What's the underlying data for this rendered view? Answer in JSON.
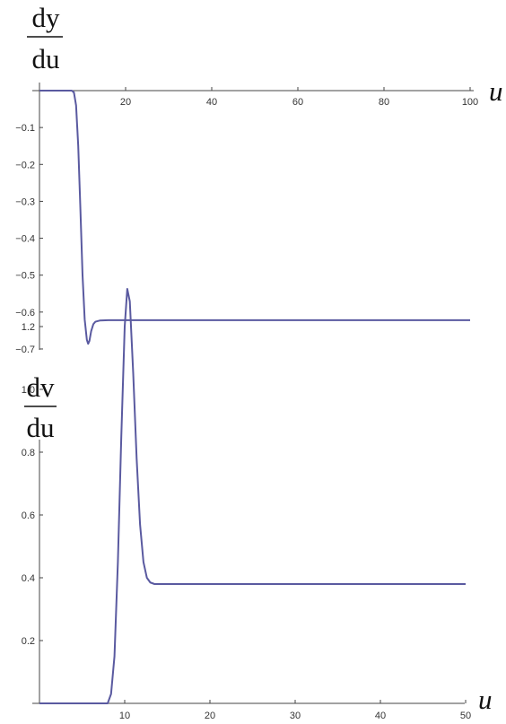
{
  "charts": [
    {
      "ylabel_numerator": "dy",
      "ylabel_denominator": "du",
      "xlabel": "u"
    },
    {
      "ylabel_numerator": "dv",
      "ylabel_denominator": "du",
      "xlabel": "u"
    }
  ],
  "chart_data": [
    {
      "type": "line",
      "title": "",
      "xlabel": "u",
      "ylabel": "dy/du",
      "xlim": [
        0,
        100
      ],
      "ylim": [
        -0.7,
        0
      ],
      "x_ticks": [
        20,
        40,
        60,
        80,
        100
      ],
      "x_tick_labels": [
        "20",
        "40",
        "60",
        "80",
        "100"
      ],
      "y_ticks": [
        -0.1,
        -0.2,
        -0.3,
        -0.4,
        -0.5,
        -0.6,
        -0.7
      ],
      "y_tick_labels": [
        "-0.1",
        "-0.2",
        "-0.3",
        "-0.4",
        "-0.5",
        "-0.6",
        "-0.7"
      ],
      "grid": false,
      "legend": "none",
      "line_color": "#5a5aa0",
      "series": [
        {
          "x": [
            0,
            7.5,
            8.0,
            8.5,
            9.0,
            9.5,
            10.0,
            10.5,
            11.0,
            11.3,
            11.6,
            12.0,
            12.5,
            13.0,
            14.0,
            16.0,
            20,
            40,
            60,
            80,
            100
          ],
          "values": [
            0,
            0,
            -0.005,
            -0.04,
            -0.15,
            -0.32,
            -0.5,
            -0.62,
            -0.675,
            -0.686,
            -0.678,
            -0.652,
            -0.633,
            -0.626,
            -0.623,
            -0.622,
            -0.622,
            -0.622,
            -0.622,
            -0.622,
            -0.622
          ]
        }
      ]
    },
    {
      "type": "line",
      "title": "",
      "xlabel": "u",
      "ylabel": "dv/du",
      "xlim": [
        0,
        50
      ],
      "ylim": [
        0,
        1.4
      ],
      "x_ticks": [
        10,
        20,
        30,
        40,
        50
      ],
      "x_tick_labels": [
        "10",
        "20",
        "30",
        "40",
        "50"
      ],
      "y_ticks": [
        0.2,
        0.4,
        0.6,
        0.8,
        1.0,
        1.2
      ],
      "y_tick_labels": [
        "0.2",
        "0.4",
        "0.6",
        "0.8",
        "1.0",
        "1.2"
      ],
      "grid": false,
      "legend": "none",
      "line_color": "#5a5aa0",
      "series": [
        {
          "x": [
            0,
            8.0,
            8.4,
            8.8,
            9.2,
            9.6,
            10.0,
            10.3,
            10.6,
            11.0,
            11.4,
            11.8,
            12.2,
            12.6,
            13.0,
            13.5,
            14.0,
            15.0,
            20,
            30,
            40,
            50
          ],
          "values": [
            0,
            0,
            0.03,
            0.15,
            0.45,
            0.85,
            1.2,
            1.32,
            1.28,
            1.05,
            0.78,
            0.57,
            0.45,
            0.4,
            0.385,
            0.38,
            0.38,
            0.38,
            0.38,
            0.38,
            0.38,
            0.38
          ]
        }
      ]
    }
  ]
}
